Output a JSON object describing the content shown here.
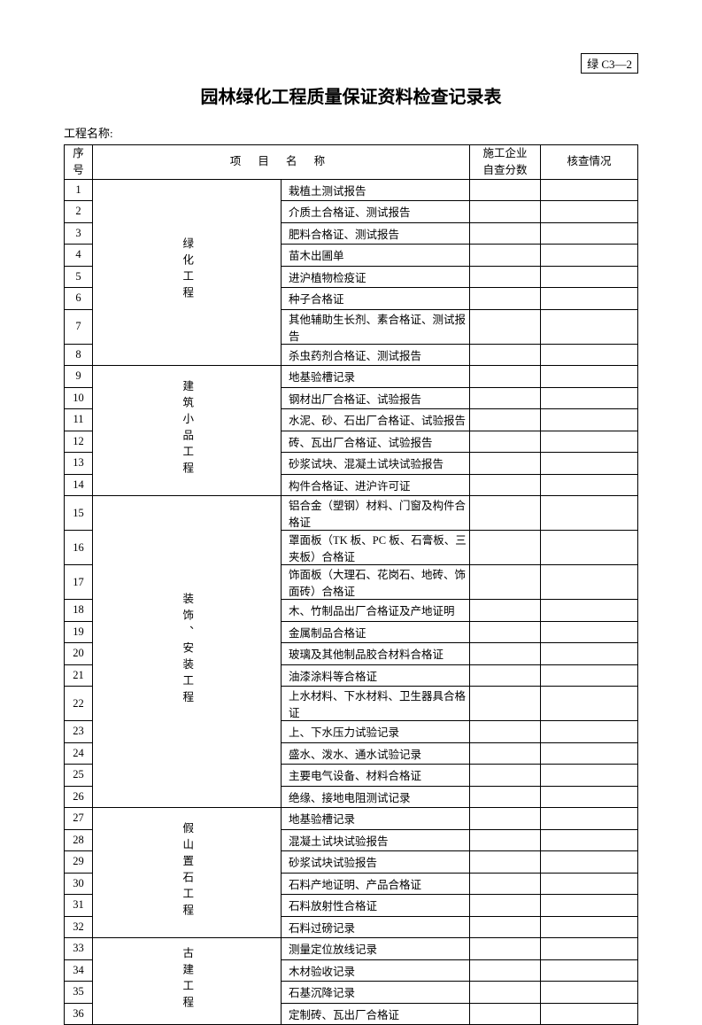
{
  "doc_code": "绿 C3—2",
  "title": "园林绿化工程质量保证资料检查记录表",
  "project_name_label": "工程名称:",
  "headers": {
    "seq": "序号",
    "item_name": "项 目 名 称",
    "score": "施工企业自查分数",
    "check": "核查情况"
  },
  "categories": [
    {
      "label": "绿化工程",
      "start": 1,
      "rowspan": 8
    },
    {
      "label": "建筑小品工程",
      "start": 9,
      "rowspan": 6
    },
    {
      "label": "装饰、安装工程",
      "start": 15,
      "rowspan": 12
    },
    {
      "label": "假山置石工程",
      "start": 27,
      "rowspan": 6
    },
    {
      "label": "古建工程",
      "start": 33,
      "rowspan": 4
    }
  ],
  "rows": [
    {
      "seq": 1,
      "item": "栽植土测试报告"
    },
    {
      "seq": 2,
      "item": "介质土合格证、测试报告"
    },
    {
      "seq": 3,
      "item": "肥料合格证、测试报告"
    },
    {
      "seq": 4,
      "item": "苗木出圃单"
    },
    {
      "seq": 5,
      "item": "进沪植物检疫证"
    },
    {
      "seq": 6,
      "item": "种子合格证"
    },
    {
      "seq": 7,
      "item": "其他辅助生长剂、素合格证、测试报告"
    },
    {
      "seq": 8,
      "item": "杀虫药剂合格证、测试报告"
    },
    {
      "seq": 9,
      "item": "地基验槽记录"
    },
    {
      "seq": 10,
      "item": "钢材出厂合格证、试验报告"
    },
    {
      "seq": 11,
      "item": "水泥、砂、石出厂合格证、试验报告"
    },
    {
      "seq": 12,
      "item": "砖、瓦出厂合格证、试验报告"
    },
    {
      "seq": 13,
      "item": "砂浆试块、混凝土试块试验报告"
    },
    {
      "seq": 14,
      "item": "构件合格证、进沪许可证"
    },
    {
      "seq": 15,
      "item": "铝合金（塑钢）材料、门窗及构件合格证"
    },
    {
      "seq": 16,
      "item": "罩面板（TK 板、PC 板、石膏板、三夹板）合格证"
    },
    {
      "seq": 17,
      "item": "饰面板（大理石、花岗石、地砖、饰面砖）合格证"
    },
    {
      "seq": 18,
      "item": "木、竹制品出厂合格证及产地证明"
    },
    {
      "seq": 19,
      "item": "金属制品合格证"
    },
    {
      "seq": 20,
      "item": "玻璃及其他制品胶合材料合格证"
    },
    {
      "seq": 21,
      "item": "油漆涂料等合格证"
    },
    {
      "seq": 22,
      "item": "上水材料、下水材料、卫生器具合格证"
    },
    {
      "seq": 23,
      "item": "上、下水压力试验记录"
    },
    {
      "seq": 24,
      "item": "盛水、泼水、通水试验记录"
    },
    {
      "seq": 25,
      "item": "主要电气设备、材料合格证"
    },
    {
      "seq": 26,
      "item": "绝缘、接地电阻测试记录"
    },
    {
      "seq": 27,
      "item": "地基验槽记录"
    },
    {
      "seq": 28,
      "item": "混凝土试块试验报告"
    },
    {
      "seq": 29,
      "item": "砂浆试块试验报告"
    },
    {
      "seq": 30,
      "item": "石料产地证明、产品合格证"
    },
    {
      "seq": 31,
      "item": "石料放射性合格证"
    },
    {
      "seq": 32,
      "item": "石料过磅记录"
    },
    {
      "seq": 33,
      "item": "测量定位放线记录"
    },
    {
      "seq": 34,
      "item": "木材验收记录"
    },
    {
      "seq": 35,
      "item": "石基沉降记录"
    },
    {
      "seq": 36,
      "item": "定制砖、瓦出厂合格证"
    }
  ]
}
